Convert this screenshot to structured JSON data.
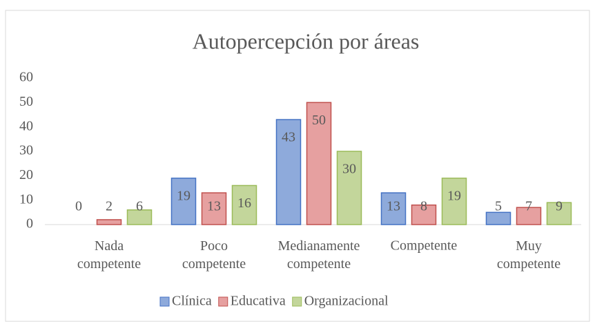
{
  "chart_data": {
    "type": "bar",
    "title": "Autopercepción por áreas",
    "categories": [
      "Nada competente",
      "Poco competente",
      "Medianamente competente",
      "Competente",
      "Muy competente"
    ],
    "series": [
      {
        "name": "Clínica",
        "color": "#8eaadb",
        "values": [
          0,
          19,
          43,
          13,
          5
        ]
      },
      {
        "name": "Educativa",
        "color": "#e6a0a0",
        "values": [
          2,
          13,
          50,
          8,
          7
        ]
      },
      {
        "name": "Organizacional",
        "color": "#c3d69b",
        "values": [
          6,
          16,
          30,
          19,
          9
        ]
      }
    ],
    "ylim": [
      0,
      60
    ],
    "yticks": [
      0,
      10,
      20,
      30,
      40,
      50,
      60
    ],
    "grid": false,
    "legend": "bottom"
  }
}
